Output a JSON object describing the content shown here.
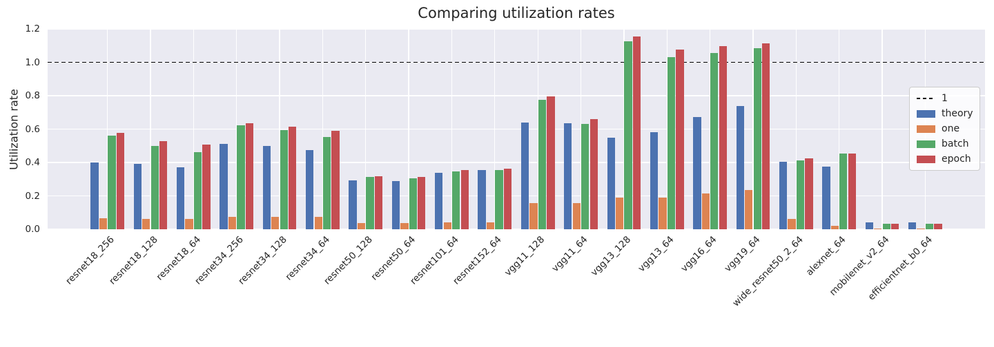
{
  "chart_data": {
    "type": "bar",
    "title": "Comparing utilization rates",
    "xlabel": "",
    "ylabel": "Utilization rate",
    "ylim": [
      0,
      1.2
    ],
    "yticks": [
      0.0,
      0.2,
      0.4,
      0.6,
      0.8,
      1.0,
      1.2
    ],
    "grid": true,
    "legend_position": "center-right",
    "reference_line": {
      "label": "1",
      "value": 1.0,
      "style": "dashed",
      "color": "#000000"
    },
    "colors": {
      "plot_background": "#EAEAF2",
      "grid_color": "#FFFFFF",
      "text_color": "#262626"
    },
    "categories": [
      "resnet18_256",
      "resnet18_128",
      "resnet18_64",
      "resnet34_256",
      "resnet34_128",
      "resnet34_64",
      "resnet50_128",
      "resnet50_64",
      "resnet101_64",
      "resnet152_64",
      "vgg11_128",
      "vgg11_64",
      "vgg13_128",
      "vgg13_64",
      "vgg16_64",
      "vgg19_64",
      "wide_resnet50_2_64",
      "alexnet_64",
      "mobilenet_v2_64",
      "efficientnet_b0_64"
    ],
    "series": [
      {
        "name": "theory",
        "color": "#4C72B0",
        "values": [
          0.4,
          0.392,
          0.373,
          0.51,
          0.498,
          0.474,
          0.292,
          0.289,
          0.338,
          0.355,
          0.64,
          0.635,
          0.548,
          0.58,
          0.674,
          0.74,
          0.405,
          0.377,
          0.04,
          0.04
        ]
      },
      {
        "name": "one",
        "color": "#DD8452",
        "values": [
          0.066,
          0.062,
          0.062,
          0.074,
          0.074,
          0.074,
          0.037,
          0.037,
          0.041,
          0.04,
          0.158,
          0.158,
          0.19,
          0.19,
          0.215,
          0.235,
          0.06,
          0.022,
          0.005,
          0.005
        ]
      },
      {
        "name": "batch",
        "color": "#55A868",
        "values": [
          0.561,
          0.497,
          0.461,
          0.623,
          0.594,
          0.551,
          0.315,
          0.304,
          0.345,
          0.354,
          0.775,
          0.632,
          1.125,
          1.031,
          1.056,
          1.085,
          0.411,
          0.455,
          0.034,
          0.031
        ]
      },
      {
        "name": "epoch",
        "color": "#C44E52",
        "values": [
          0.578,
          0.529,
          0.507,
          0.634,
          0.616,
          0.59,
          0.318,
          0.313,
          0.356,
          0.362,
          0.794,
          0.659,
          1.156,
          1.078,
          1.097,
          1.112,
          0.424,
          0.452,
          0.035,
          0.034
        ]
      }
    ]
  }
}
